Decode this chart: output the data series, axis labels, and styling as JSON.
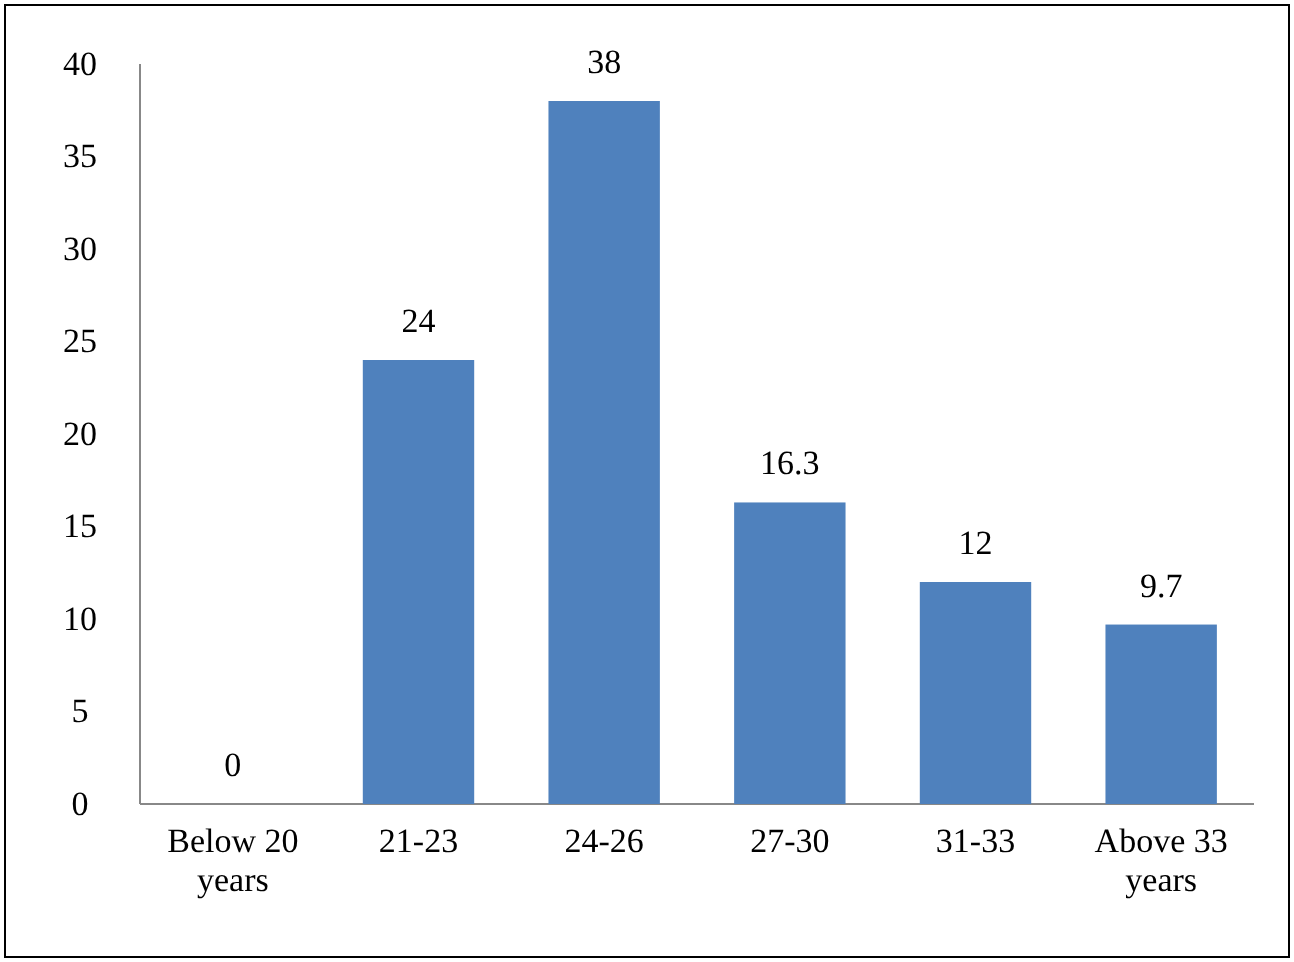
{
  "chart_data": {
    "type": "bar",
    "categories": [
      "Below 20 years",
      "21-23",
      "24-26",
      "27-30",
      "31-33",
      "Above 33 years"
    ],
    "values": [
      0,
      24,
      38,
      16.3,
      12,
      9.7
    ],
    "color": "#4f81bd",
    "ylim": [
      0,
      40
    ],
    "yticks": [
      0,
      5,
      10,
      15,
      20,
      25,
      30,
      35,
      40
    ],
    "data_labels": true
  }
}
